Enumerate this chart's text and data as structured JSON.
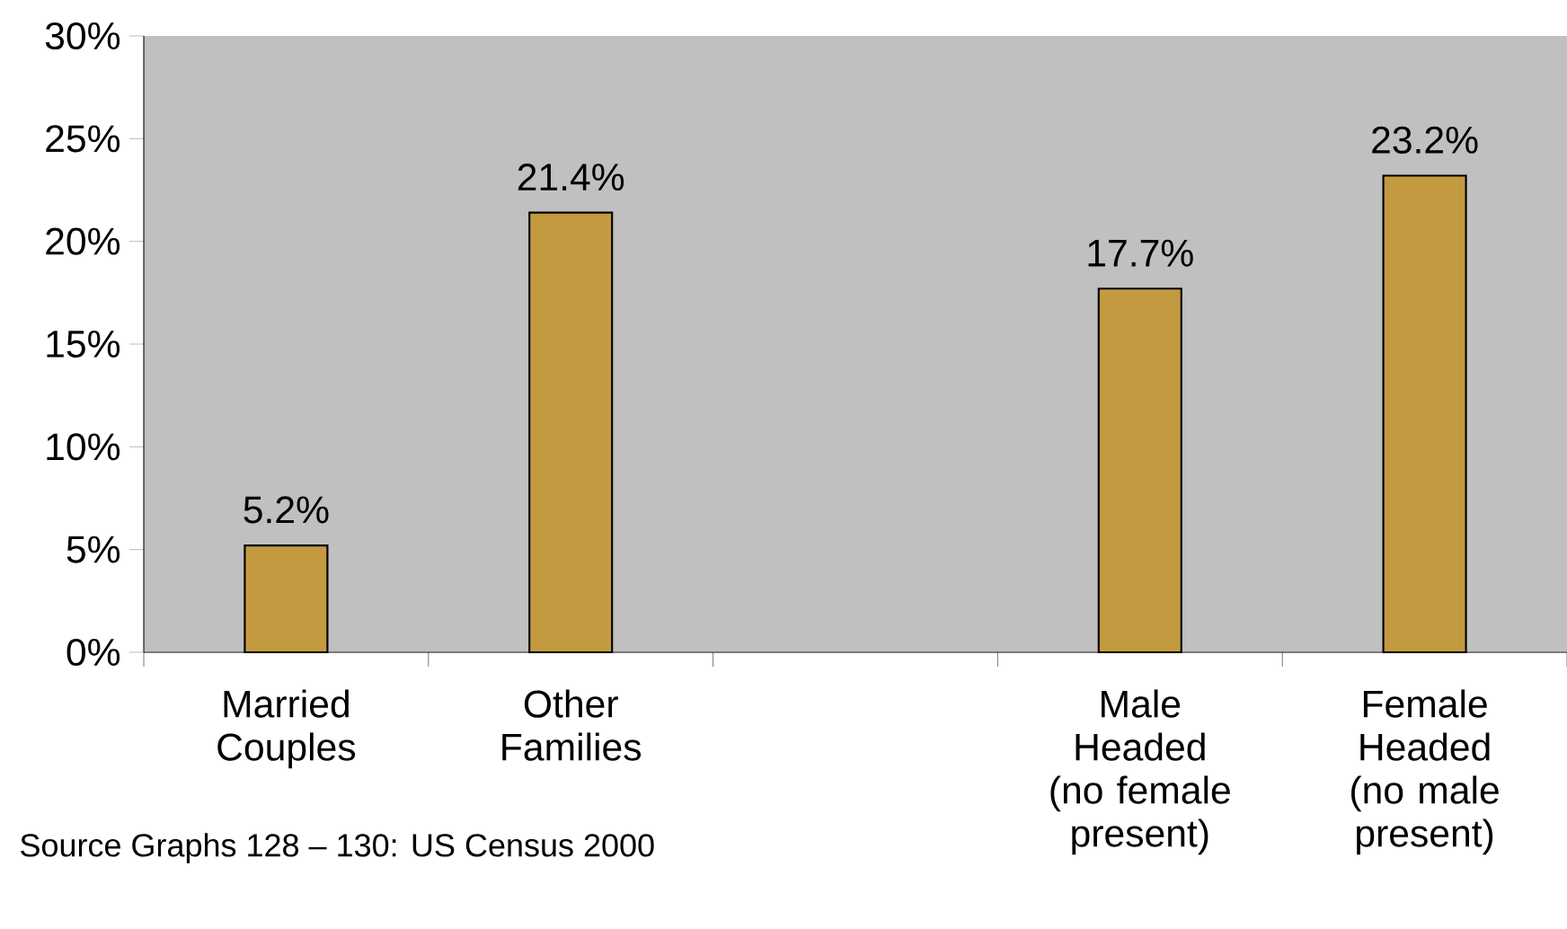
{
  "chart_data": {
    "type": "bar",
    "categories": [
      "Married Couples",
      "Other Families",
      null,
      "Male Headed (no female present)",
      "Female Headed (no male present)"
    ],
    "values": [
      5.2,
      21.4,
      null,
      17.7,
      23.2
    ],
    "value_labels": [
      "5.2%",
      "21.4%",
      null,
      "17.7%",
      "23.2%"
    ],
    "color": "#c49a40",
    "ylim": [
      0,
      30
    ],
    "yticks": [
      {
        "value": 0,
        "label": "0%"
      },
      {
        "value": 5,
        "label": "5%"
      },
      {
        "value": 10,
        "label": "10%"
      },
      {
        "value": 15,
        "label": "15%"
      },
      {
        "value": 20,
        "label": "20%"
      },
      {
        "value": 25,
        "label": "25%"
      },
      {
        "value": 30,
        "label": "30%"
      }
    ],
    "grid": false,
    "annotations": [
      "Source Graphs 128 – 130: US Census 2000"
    ]
  }
}
